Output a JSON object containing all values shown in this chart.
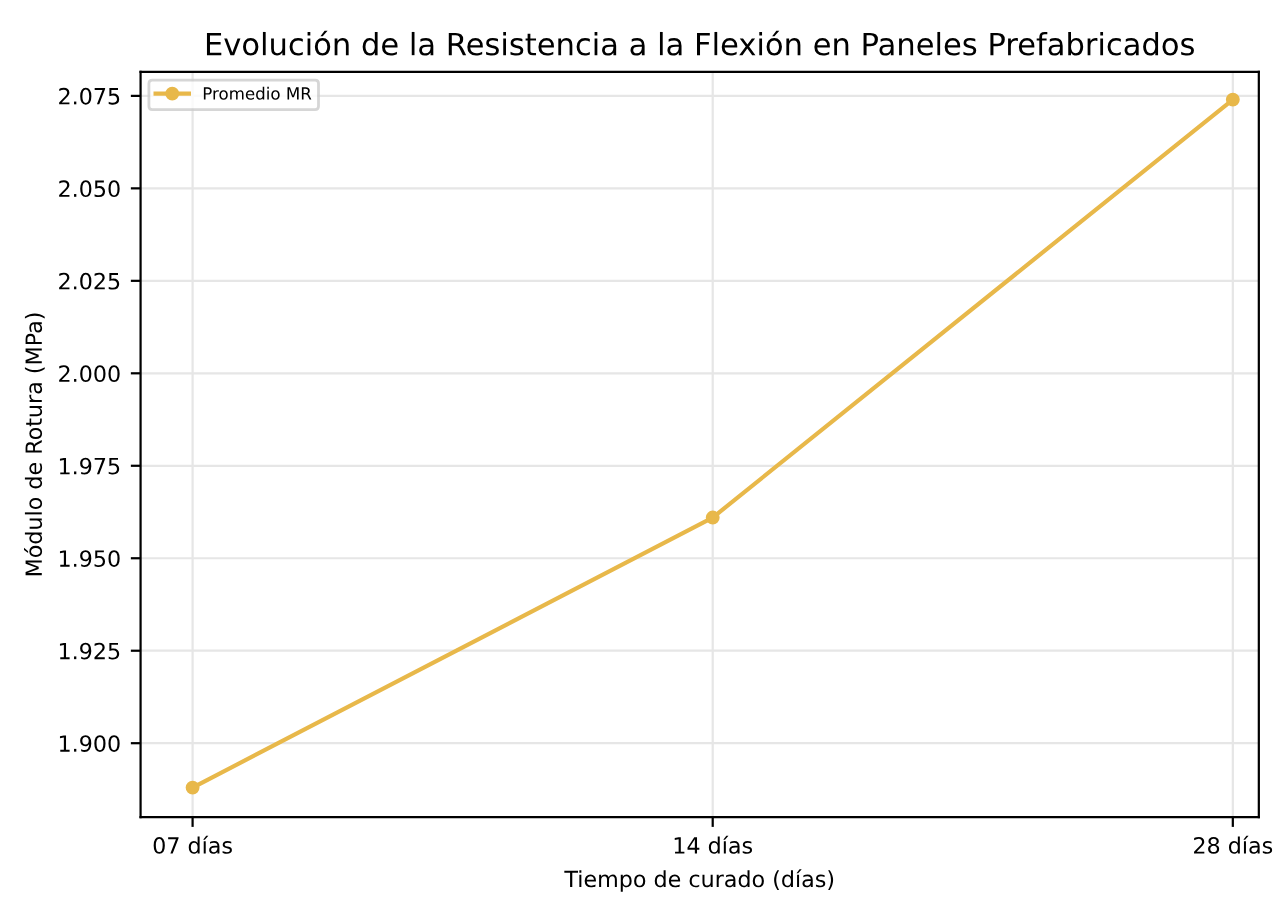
{
  "chart_data": {
    "type": "line",
    "title": "Evolución de la Resistencia a la Flexión en Paneles Prefabricados",
    "xlabel": "Tiempo de curado (días)",
    "ylabel": "Módulo de Rotura (MPa)",
    "categories": [
      "07 días",
      "14 días",
      "28 días"
    ],
    "series": [
      {
        "name": "Promedio MR",
        "color": "#e8b84a",
        "values": [
          1.888,
          1.961,
          2.074
        ]
      }
    ],
    "ylim": [
      1.88,
      2.0815
    ],
    "yticks": [
      {
        "value": 1.9,
        "label": "1.900"
      },
      {
        "value": 1.925,
        "label": "1.925"
      },
      {
        "value": 1.95,
        "label": "1.950"
      },
      {
        "value": 1.975,
        "label": "1.975"
      },
      {
        "value": 2.0,
        "label": "2.000"
      },
      {
        "value": 2.025,
        "label": "2.025"
      },
      {
        "value": 2.05,
        "label": "2.050"
      },
      {
        "value": 2.075,
        "label": "2.075"
      }
    ],
    "grid": true,
    "legend": "top left",
    "marker": "circle",
    "line_style": "solid"
  }
}
